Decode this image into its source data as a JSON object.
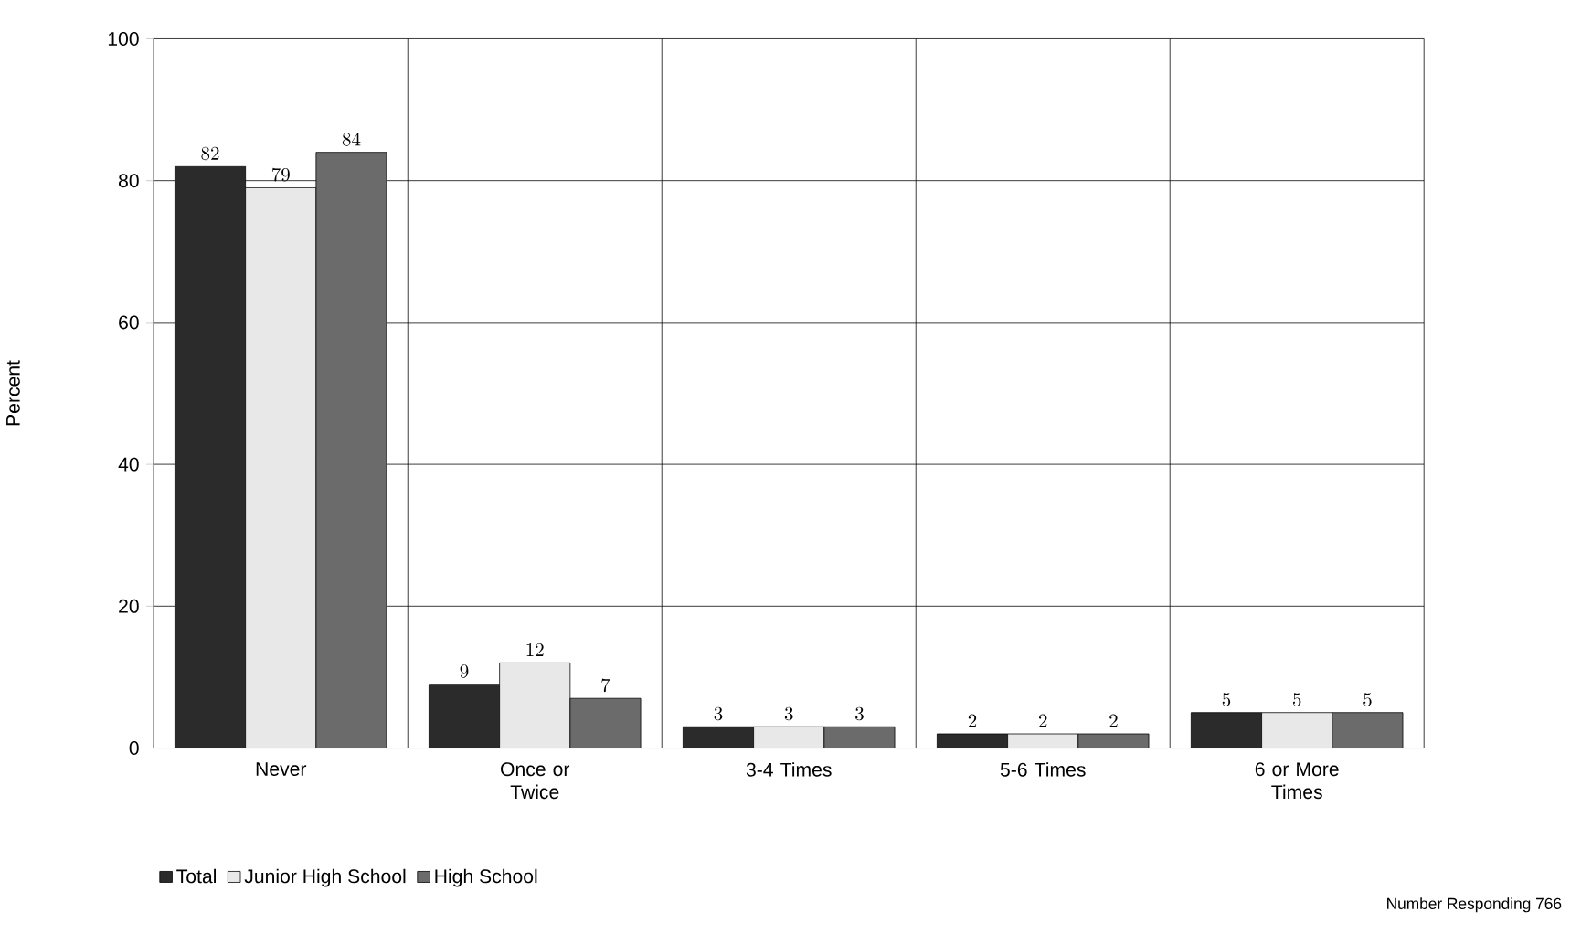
{
  "chart_data": {
    "type": "bar",
    "ylabel": "Percent",
    "categories": [
      "Never",
      "Once or Twice",
      "3-4 Times",
      "5-6 Times",
      "6 or More Times"
    ],
    "series": [
      {
        "name": "Total",
        "color": "#2b2b2b",
        "values": [
          82,
          9,
          3,
          2,
          5
        ]
      },
      {
        "name": "Junior High School",
        "color": "#e8e8e8",
        "values": [
          79,
          12,
          3,
          2,
          5
        ]
      },
      {
        "name": "High School",
        "color": "#6b6b6b",
        "values": [
          84,
          7,
          3,
          2,
          5
        ]
      }
    ],
    "ylim": [
      0,
      100
    ],
    "yticks": [
      0,
      20,
      40,
      60,
      80,
      100
    ],
    "grid": true,
    "legend": "bottom left",
    "data_labels": true,
    "annotations": [
      "Number Responding 766"
    ]
  }
}
